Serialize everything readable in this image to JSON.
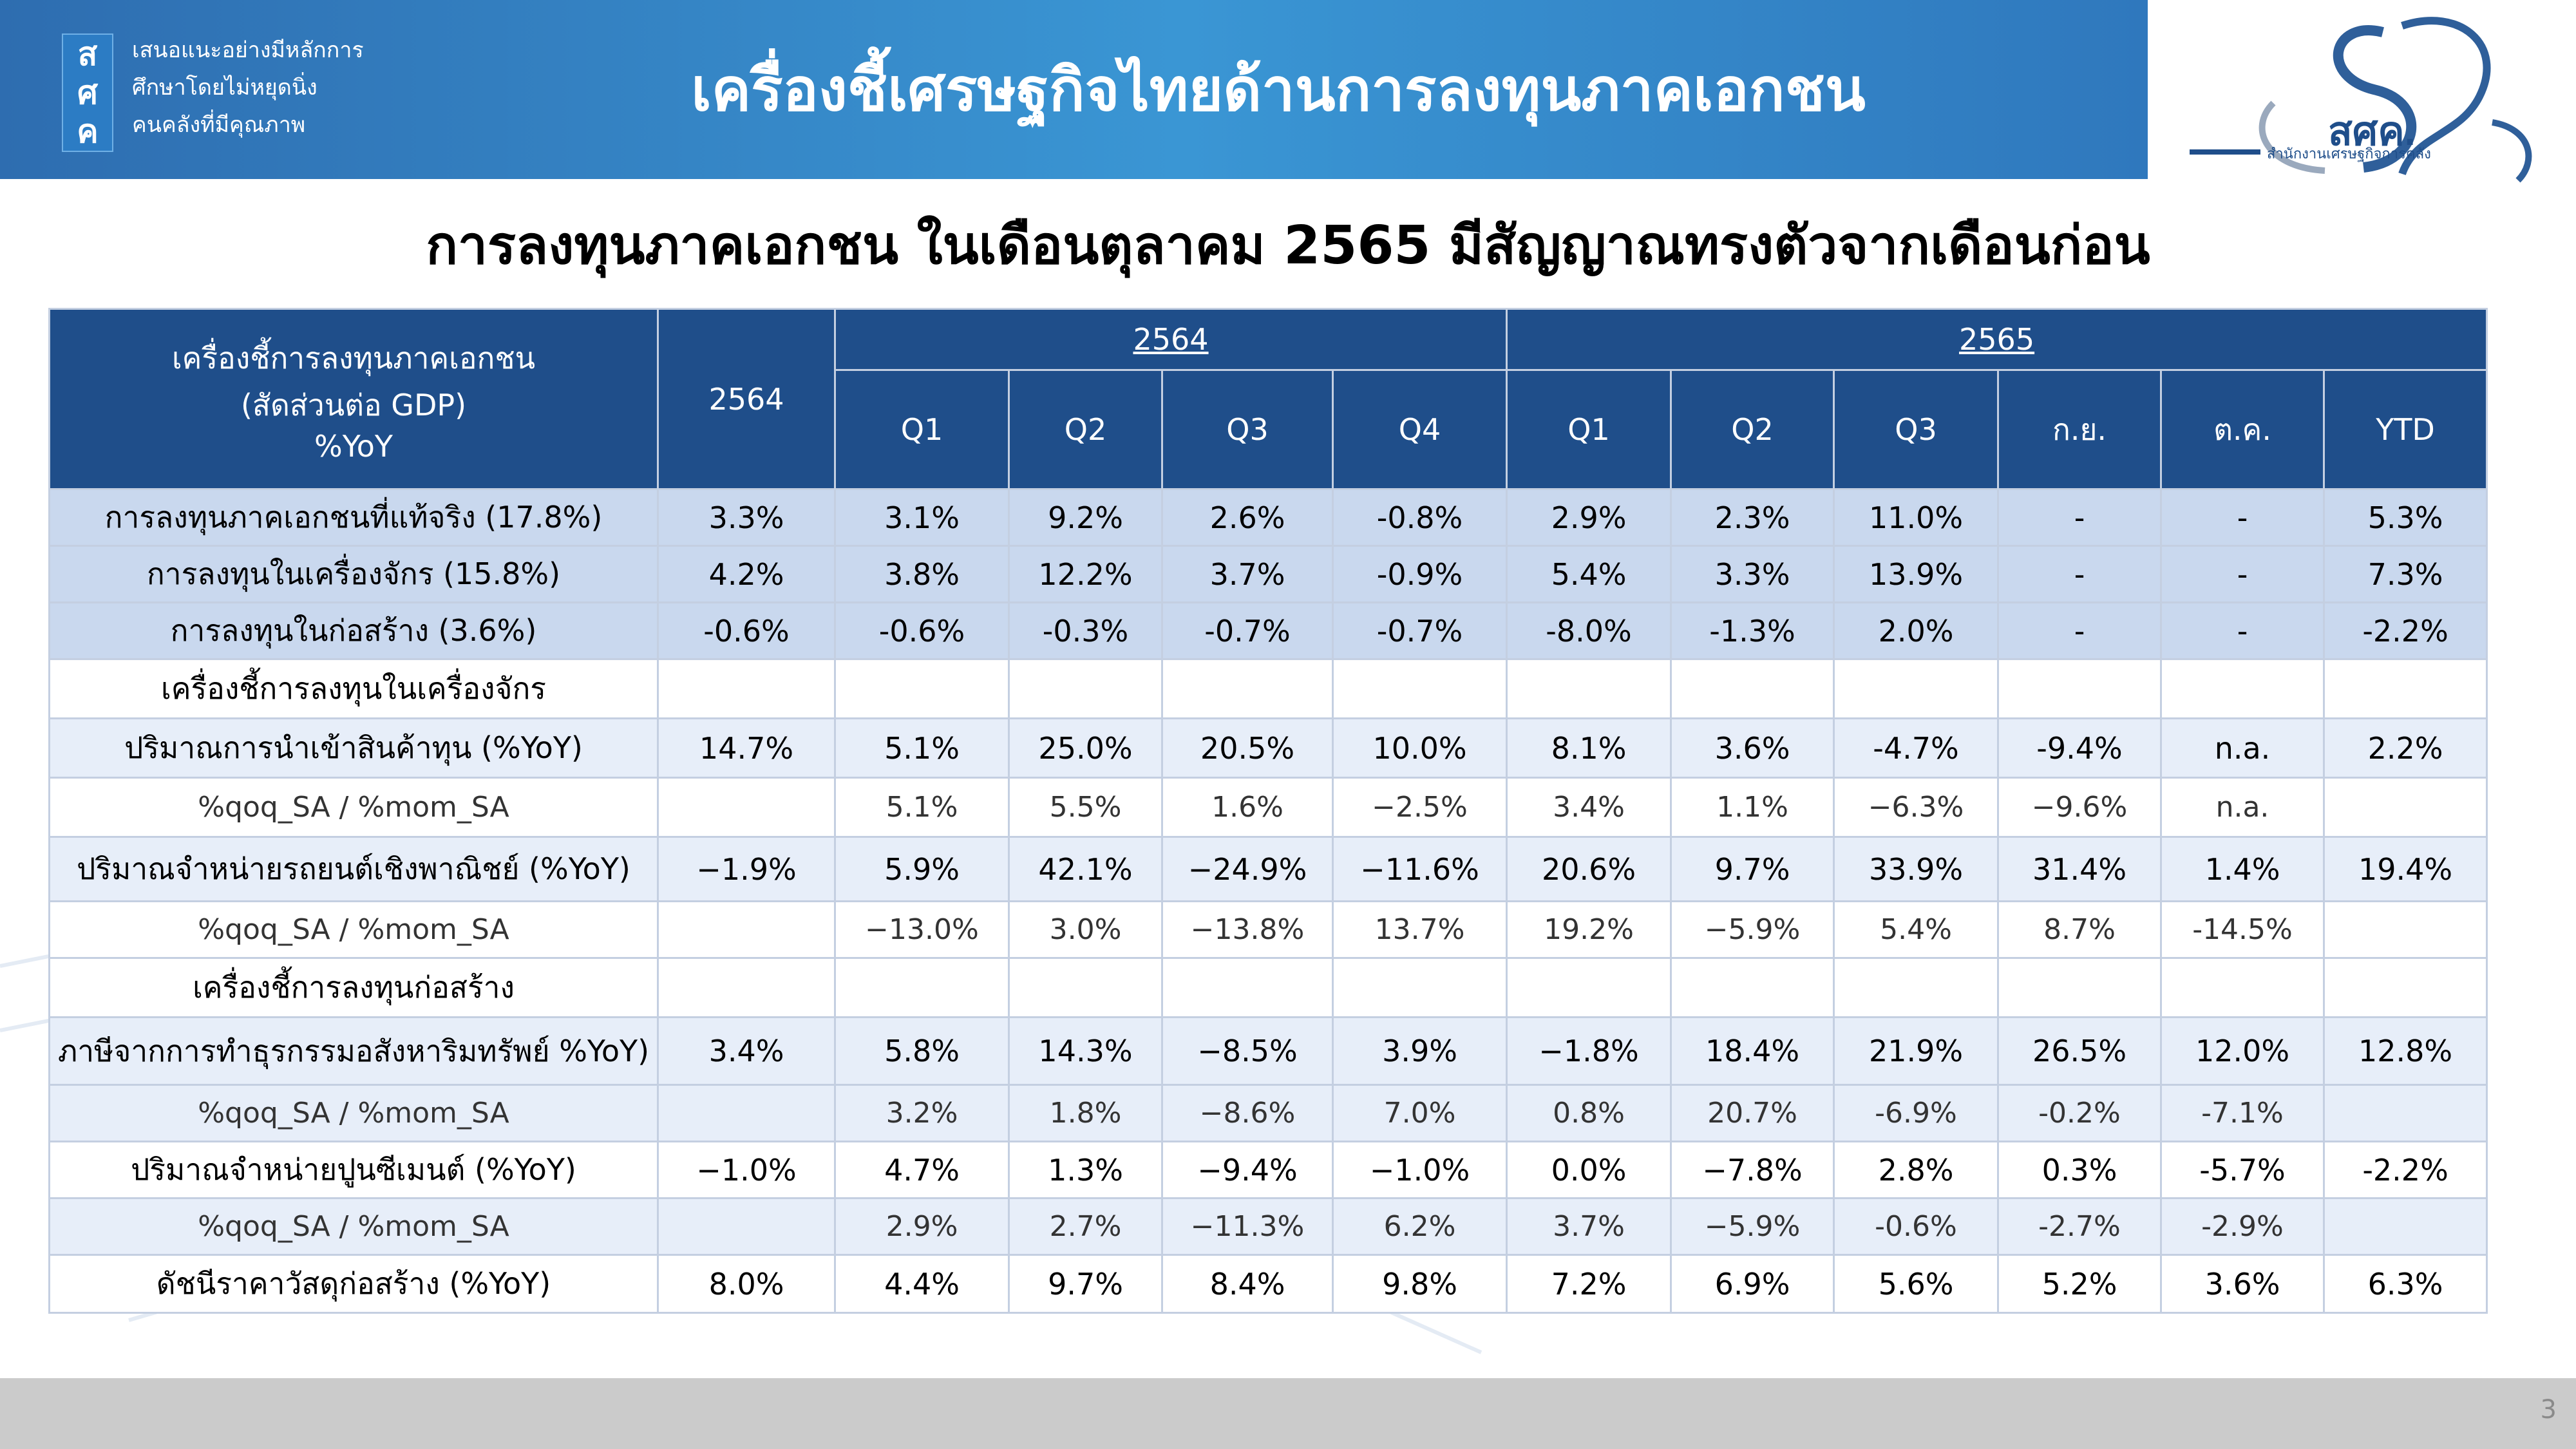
{
  "header": {
    "logo_chars": [
      "ส",
      "ศ",
      "ค"
    ],
    "tagline": [
      "เสนอแนะอย่างมีหลักการ",
      "ศึกษาโดยไม่หยุดนิ่ง",
      "คนคลังที่มีคุณภาพ"
    ],
    "title": "เครื่องชี้เศรษฐกิจไทยด้านการลงทุนภาคเอกชน",
    "org_logo_text": "สศค.",
    "org_logo_subtext": "สำนักงานเศรษฐกิจการคลัง"
  },
  "slide_title": "การลงทุนภาคเอกชน ในเดือนตุลาคม 2565 มีสัญญาณทรงตัวจากเดือนก่อน",
  "table": {
    "header_label_lines": [
      "เครื่องชี้การลงทุนภาคเอกชน",
      "(สัดส่วนต่อ GDP)",
      "%YoY"
    ],
    "annual_col": "2564",
    "group_2564": "2564",
    "group_2565": "2565",
    "sub_cols": [
      "Q1",
      "Q2",
      "Q3",
      "Q4",
      "Q1",
      "Q2",
      "Q3",
      "ก.ย.",
      "ต.ค.",
      "YTD"
    ],
    "rows": [
      {
        "label": "การลงทุนภาคเอกชนที่แท้จริง (17.8%)",
        "values": [
          "3.3%",
          "3.1%",
          "9.2%",
          "2.6%",
          "-0.8%",
          "2.9%",
          "2.3%",
          "11.0%",
          "-",
          "-",
          "5.3%"
        ]
      },
      {
        "label": "การลงทุนในเครื่องจักร (15.8%)",
        "values": [
          "4.2%",
          "3.8%",
          "12.2%",
          "3.7%",
          "-0.9%",
          "5.4%",
          "3.3%",
          "13.9%",
          "-",
          "-",
          "7.3%"
        ]
      },
      {
        "label": "การลงทุนในก่อสร้าง (3.6%)",
        "values": [
          "-0.6%",
          "-0.6%",
          "-0.3%",
          "-0.7%",
          "-0.7%",
          "-8.0%",
          "-1.3%",
          "2.0%",
          "-",
          "-",
          "-2.2%"
        ]
      },
      {
        "label": "เครื่องชี้การลงทุนในเครื่องจักร",
        "values": [
          "",
          "",
          "",
          "",
          "",
          "",
          "",
          "",
          "",
          "",
          ""
        ]
      },
      {
        "label": "ปริมาณการนำเข้าสินค้าทุน (%YoY)",
        "values": [
          "14.7%",
          "5.1%",
          "25.0%",
          "20.5%",
          "10.0%",
          "8.1%",
          "3.6%",
          "-4.7%",
          "-9.4%",
          "n.a.",
          "2.2%"
        ]
      },
      {
        "label": "%qoq_SA / %mom_SA",
        "values": [
          "",
          "5.1%",
          "5.5%",
          "1.6%",
          "−2.5%",
          "3.4%",
          "1.1%",
          "−6.3%",
          "−9.6%",
          "n.a.",
          ""
        ]
      },
      {
        "label": "ปริมาณจำหน่ายรถยนต์เชิงพาณิชย์ (%YoY)",
        "values": [
          "−1.9%",
          "5.9%",
          "42.1%",
          "−24.9%",
          "−11.6%",
          "20.6%",
          "9.7%",
          "33.9%",
          "31.4%",
          "1.4%",
          "19.4%"
        ]
      },
      {
        "label": "%qoq_SA / %mom_SA",
        "values": [
          "",
          "−13.0%",
          "3.0%",
          "−13.8%",
          "13.7%",
          "19.2%",
          "−5.9%",
          "5.4%",
          "8.7%",
          "-14.5%",
          ""
        ]
      },
      {
        "label": "เครื่องชี้การลงทุนก่อสร้าง",
        "values": [
          "",
          "",
          "",
          "",
          "",
          "",
          "",
          "",
          "",
          "",
          ""
        ]
      },
      {
        "label": "ภาษีจากการทำธุรกรรมอสังหาริมทรัพย์ %YoY)",
        "values": [
          "3.4%",
          "5.8%",
          "14.3%",
          "−8.5%",
          "3.9%",
          "−1.8%",
          "18.4%",
          "21.9%",
          "26.5%",
          "12.0%",
          "12.8%"
        ]
      },
      {
        "label": "%qoq_SA / %mom_SA",
        "values": [
          "",
          "3.2%",
          "1.8%",
          "−8.6%",
          "7.0%",
          "0.8%",
          "20.7%",
          "-6.9%",
          "-0.2%",
          "-7.1%",
          ""
        ]
      },
      {
        "label": "ปริมาณจำหน่ายปูนซีเมนต์ (%YoY)",
        "values": [
          "−1.0%",
          "4.7%",
          "1.3%",
          "−9.4%",
          "−1.0%",
          "0.0%",
          "−7.8%",
          "2.8%",
          "0.3%",
          "-5.7%",
          "-2.2%"
        ]
      },
      {
        "label": "%qoq_SA / %mom_SA",
        "values": [
          "",
          "2.9%",
          "2.7%",
          "−11.3%",
          "6.2%",
          "3.7%",
          "−5.9%",
          "-0.6%",
          "-2.7%",
          "-2.9%",
          ""
        ]
      },
      {
        "label": "ดัชนีราคาวัสดุก่อสร้าง (%YoY)",
        "values": [
          "8.0%",
          "4.4%",
          "9.7%",
          "8.4%",
          "9.8%",
          "7.2%",
          "6.9%",
          "5.6%",
          "5.2%",
          "3.6%",
          "6.3%"
        ]
      }
    ]
  },
  "page_number": "3"
}
